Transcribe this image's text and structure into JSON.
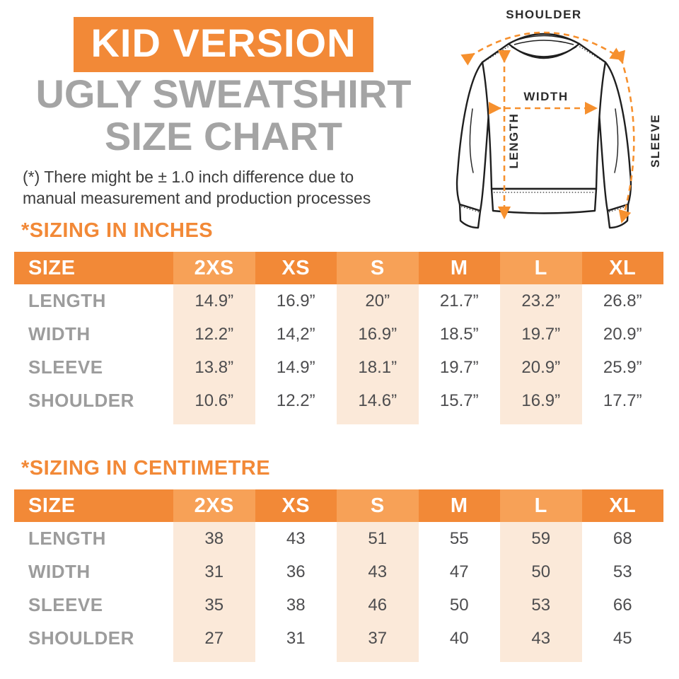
{
  "header": {
    "badge": "KID VERSION",
    "title_line1": "UGLY SWEATSHIRT",
    "title_line2": "SIZE CHART",
    "note_line1": "(*) There might be ± 1.0 inch difference due to",
    "note_line2": "manual measurement and production processes"
  },
  "diagram": {
    "shoulder_label": "SHOULDER",
    "width_label": "WIDTH",
    "length_label": "LENGTH",
    "sleeve_label": "SLEEVE"
  },
  "colors": {
    "orange": "#F28937",
    "orange_light": "#F7A157",
    "peach": "#FBE9D9",
    "title_gray": "#A4A4A4",
    "label_gray": "#9C9C9C",
    "value_gray": "#4D4D4F",
    "arrow_orange": "#F6902E"
  },
  "tables": [
    {
      "section_title": "*SIZING IN INCHES",
      "columns": [
        "SIZE",
        "2XS",
        "XS",
        "S",
        "M",
        "L",
        "XL"
      ],
      "highlighted_sizes": [
        "2XS",
        "S",
        "L"
      ],
      "rows": [
        {
          "label": "LENGTH",
          "values": [
            "14.9”",
            "16.9”",
            "20”",
            "21.7”",
            "23.2”",
            "26.8”"
          ]
        },
        {
          "label": "WIDTH",
          "values": [
            "12.2”",
            "14,2”",
            "16.9”",
            "18.5”",
            "19.7”",
            "20.9”"
          ]
        },
        {
          "label": "SLEEVE",
          "values": [
            "13.8”",
            "14.9”",
            "18.1”",
            "19.7”",
            "20.9”",
            "25.9”"
          ]
        },
        {
          "label": "SHOULDER",
          "values": [
            "10.6”",
            "12.2”",
            "14.6”",
            "15.7”",
            "16.9”",
            "17.7”"
          ]
        }
      ]
    },
    {
      "section_title": "*SIZING IN CENTIMETRE",
      "columns": [
        "SIZE",
        "2XS",
        "XS",
        "S",
        "M",
        "L",
        "XL"
      ],
      "highlighted_sizes": [
        "2XS",
        "S",
        "L"
      ],
      "rows": [
        {
          "label": "LENGTH",
          "values": [
            "38",
            "43",
            "51",
            "55",
            "59",
            "68"
          ]
        },
        {
          "label": "WIDTH",
          "values": [
            "31",
            "36",
            "43",
            "47",
            "50",
            "53"
          ]
        },
        {
          "label": "SLEEVE",
          "values": [
            "35",
            "38",
            "46",
            "50",
            "53",
            "66"
          ]
        },
        {
          "label": "SHOULDER",
          "values": [
            "27",
            "31",
            "37",
            "40",
            "43",
            "45"
          ]
        }
      ]
    }
  ]
}
